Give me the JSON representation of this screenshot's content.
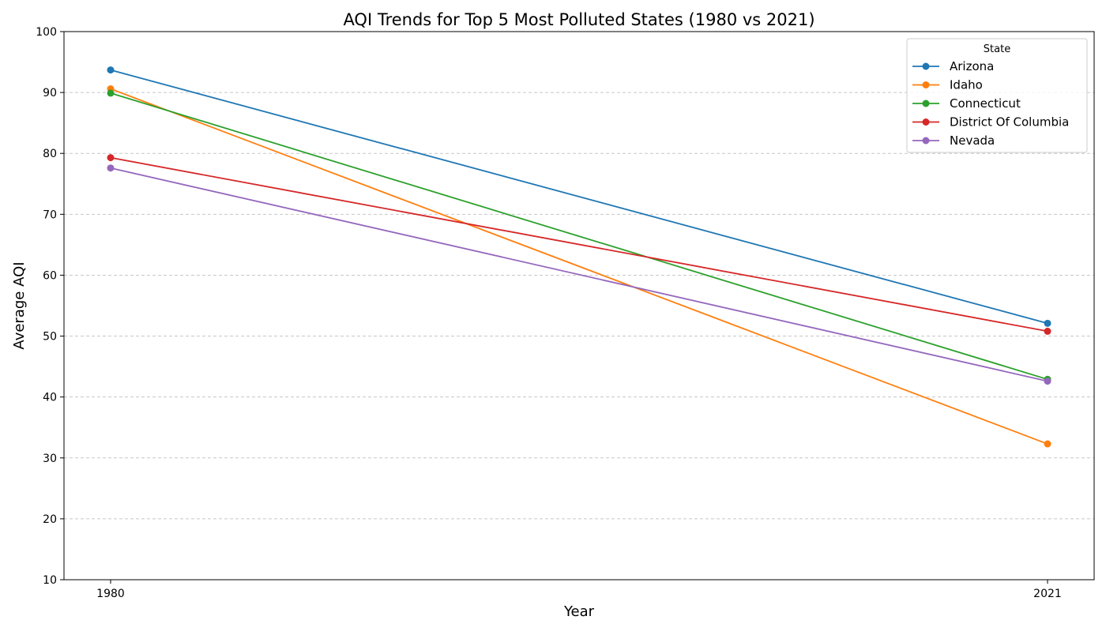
{
  "chart_data": {
    "type": "line",
    "title": "AQI Trends for Top 5 Most Polluted States (1980 vs 2021)",
    "xlabel": "Year",
    "ylabel": "Average AQI",
    "x": [
      1980,
      2021
    ],
    "x_tick_labels": [
      "1980",
      "2021"
    ],
    "ylim": [
      10,
      100
    ],
    "y_ticks": [
      10,
      20,
      30,
      40,
      50,
      60,
      70,
      80,
      90,
      100
    ],
    "grid": "horizontal dashed",
    "legend": {
      "title": "State",
      "placement": "top-right"
    },
    "series": [
      {
        "name": "Arizona",
        "values": [
          93.7,
          52.1
        ],
        "color": "#1f77b4"
      },
      {
        "name": "Idaho",
        "values": [
          90.6,
          32.3
        ],
        "color": "#ff7f0e"
      },
      {
        "name": "Connecticut",
        "values": [
          89.9,
          42.9
        ],
        "color": "#2ca02c"
      },
      {
        "name": "District Of Columbia",
        "values": [
          79.3,
          50.8
        ],
        "color": "#d62728"
      },
      {
        "name": "Nevada",
        "values": [
          77.6,
          42.6
        ],
        "color": "#9467bd"
      }
    ]
  }
}
